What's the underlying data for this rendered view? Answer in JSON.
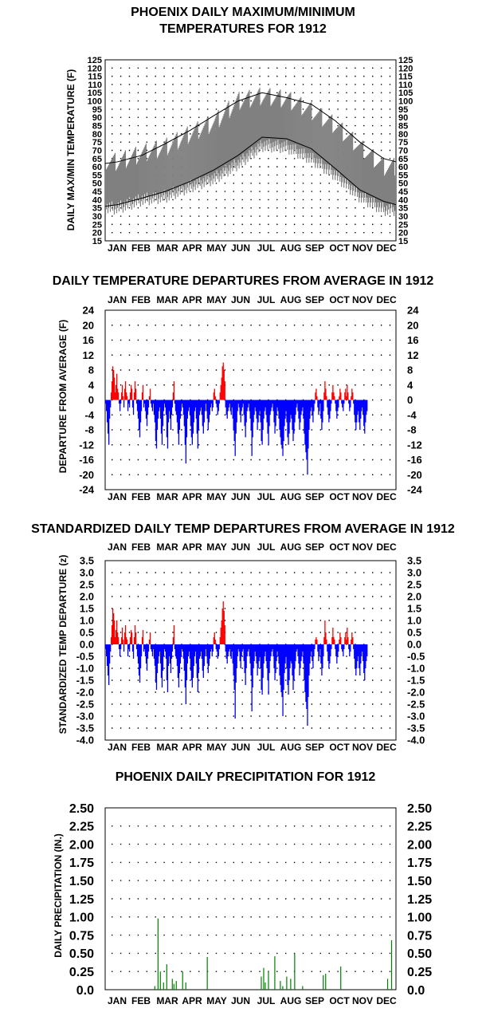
{
  "months": [
    "JAN",
    "FEB",
    "MAR",
    "APR",
    "MAY",
    "JUN",
    "JUL",
    "AUG",
    "SEP",
    "OCT",
    "NOV",
    "DEC"
  ],
  "colors": {
    "warm": "#ff0000",
    "cold": "#0000ff",
    "temp": "#808080",
    "precip": "#008000"
  },
  "chart_data": [
    {
      "type": "line",
      "title": [
        "PHOENIX DAILY MAXIMUM/MINIMUM",
        "TEMPERATURES FOR 1912"
      ],
      "ylabel": "DAILY MAX/MIN TEMPERATURE (F)",
      "ylim": [
        15,
        125
      ],
      "yticks": [
        "15",
        "20",
        "25",
        "30",
        "35",
        "40",
        "45",
        "50",
        "55",
        "60",
        "65",
        "70",
        "75",
        "80",
        "85",
        "90",
        "95",
        "100",
        "105",
        "110",
        "115",
        "120",
        "125"
      ],
      "x_unit": "month",
      "series": [
        {
          "values": [
            {
              "x": "JAN",
              "y": 63
            },
            {
              "x": "FEB",
              "y": 67
            },
            {
              "x": "MAR",
              "y": 74
            },
            {
              "x": "APR",
              "y": 82
            },
            {
              "x": "MAY",
              "y": 91
            },
            {
              "x": "JUN",
              "y": 100
            },
            {
              "x": "JUL",
              "y": 105
            },
            {
              "x": "AUG",
              "y": 102
            },
            {
              "x": "SEP",
              "y": 98
            },
            {
              "x": "OCT",
              "y": 88
            },
            {
              "x": "NOV",
              "y": 75
            },
            {
              "x": "DEC",
              "y": 65
            }
          ]
        },
        {
          "values": [
            {
              "x": "JAN",
              "y": 37
            },
            {
              "x": "FEB",
              "y": 41
            },
            {
              "x": "MAR",
              "y": 45
            },
            {
              "x": "APR",
              "y": 51
            },
            {
              "x": "MAY",
              "y": 58
            },
            {
              "x": "JUN",
              "y": 67
            },
            {
              "x": "JUL",
              "y": 78
            },
            {
              "x": "AUG",
              "y": 77
            },
            {
              "x": "SEP",
              "y": 71
            },
            {
              "x": "OCT",
              "y": 59
            },
            {
              "x": "NOV",
              "y": 46
            },
            {
              "x": "DEC",
              "y": 39
            }
          ]
        }
      ],
      "daily_range": [
        {
          "x": "JAN",
          "low": 35,
          "high": 63
        },
        {
          "x": "FEB",
          "low": 40,
          "high": 68
        },
        {
          "x": "MAR",
          "low": 42,
          "high": 72
        },
        {
          "x": "APR",
          "low": 48,
          "high": 80
        },
        {
          "x": "MAY",
          "low": 53,
          "high": 87
        },
        {
          "x": "JUN",
          "low": 62,
          "high": 100
        },
        {
          "x": "JUL",
          "low": 73,
          "high": 103
        },
        {
          "x": "AUG",
          "low": 72,
          "high": 101
        },
        {
          "x": "SEP",
          "low": 65,
          "high": 94
        },
        {
          "x": "OCT",
          "low": 55,
          "high": 85
        },
        {
          "x": "NOV",
          "low": 42,
          "high": 72
        },
        {
          "x": "DEC",
          "low": 34,
          "high": 60
        }
      ]
    },
    {
      "type": "bar",
      "title": [
        "DAILY TEMPERATURE DEPARTURES FROM AVERAGE IN 1912"
      ],
      "ylabel": "DEPARTURE FROM AVERAGE (F)",
      "ylim": [
        -24,
        24
      ],
      "yticks": [
        "-24",
        "-20",
        "-16",
        "-12",
        "-8",
        "-4",
        "0",
        "4",
        "8",
        "12",
        "16",
        "20",
        "24"
      ],
      "values": [
        -1,
        -3,
        -6,
        -9,
        -12,
        -5,
        -2,
        2,
        5,
        9,
        8,
        6,
        2,
        4,
        7,
        3,
        2,
        -1,
        -3,
        -1,
        2,
        4,
        1,
        -2,
        3,
        5,
        2,
        1,
        -3,
        -1,
        -2,
        2,
        4,
        3,
        -2,
        -4,
        2,
        5,
        3,
        -1,
        -3,
        -5,
        -8,
        -10,
        -6,
        -3,
        2,
        4,
        -2,
        -1,
        -3,
        -5,
        -7,
        -4,
        -2,
        1,
        3,
        -1,
        -2,
        -3,
        -1,
        -4,
        -6,
        -11,
        -13,
        -8,
        -5,
        -3,
        -2,
        -5,
        -9,
        -12,
        -7,
        -3,
        -1,
        -2,
        -4,
        -10,
        -13,
        -6,
        -3,
        -5,
        -8,
        -4,
        -2,
        2,
        5,
        -1,
        -3,
        -4,
        -6,
        -9,
        -12,
        -8,
        -5,
        -3,
        -1,
        -2,
        -4,
        -7,
        -12,
        -17,
        -10,
        -5,
        -3,
        -2,
        -4,
        -7,
        -10,
        -12,
        -9,
        -6,
        -3,
        -2,
        -5,
        -9,
        -13,
        -8,
        -4,
        -3,
        -2,
        -4,
        -7,
        -9,
        -6,
        -3,
        -1,
        -3,
        -5,
        -8,
        -6,
        -4,
        -2,
        -1,
        -3,
        -2,
        2,
        3,
        1,
        -1,
        -2,
        -4,
        -3,
        -1,
        2,
        4,
        6,
        9,
        10,
        8,
        5,
        -2,
        -4,
        -5,
        -3,
        -2,
        -1,
        -3,
        -4,
        -2,
        -5,
        -8,
        -11,
        -15,
        -9,
        -6,
        -3,
        -1,
        -2,
        -4,
        -6,
        -3,
        -2,
        -1,
        -4,
        -7,
        -10,
        -6,
        -3,
        -2,
        -1,
        -3,
        -5,
        -8,
        -15,
        -10,
        -6,
        -4,
        -2,
        -3,
        -5,
        -8,
        -6,
        -4,
        -3,
        -6,
        -11,
        -12,
        -8,
        -5,
        -3,
        -2,
        -4,
        -6,
        -9,
        -12,
        -7,
        -4,
        -3,
        -2,
        -1,
        -3,
        -6,
        -9,
        -7,
        -4,
        -2,
        -3,
        -5,
        -8,
        -10,
        -12,
        -13,
        -15,
        -11,
        -7,
        -5,
        -3,
        -6,
        -10,
        -12,
        -9,
        -6,
        -4,
        -5,
        -8,
        -11,
        -9,
        -6,
        -4,
        -2,
        -1,
        -3,
        -5,
        -8,
        -6,
        -4,
        -3,
        -2,
        -5,
        -9,
        -12,
        -14,
        -16,
        -20,
        -13,
        -8,
        -5,
        -3,
        -2,
        -4,
        -6,
        -3,
        -1,
        2,
        3,
        1,
        -2,
        -4,
        -3,
        -1,
        -5,
        -8,
        -6,
        -3,
        2,
        5,
        3,
        1,
        -2,
        -4,
        -6,
        -5,
        -3,
        -1,
        2,
        4,
        2,
        1,
        -1,
        -3,
        -5,
        -3,
        -2,
        1,
        3,
        2,
        -1,
        -2,
        -3,
        -1,
        2,
        3,
        1,
        4,
        2,
        -1,
        -3,
        -2,
        1,
        3,
        2,
        -1,
        -4,
        -6,
        -8,
        -6,
        -4,
        -3,
        -6,
        -8,
        -5,
        -3,
        -2,
        -4,
        -7,
        -9,
        -6,
        -4,
        -3
      ]
    },
    {
      "type": "bar",
      "title": [
        "STANDARDIZED DAILY TEMP DEPARTURES FROM AVERAGE IN 1912"
      ],
      "ylabel": "STANDARDIZED TEMP DEPARTURE (z)",
      "ylim": [
        -4,
        3.5
      ],
      "yticks": [
        "-4.0",
        "-3.5",
        "-3.0",
        "-2.5",
        "-2.0",
        "-1.5",
        "-1.0",
        "-0.5",
        "0.0",
        "0.5",
        "1.0",
        "1.5",
        "2.0",
        "2.5",
        "3.0",
        "3.5"
      ],
      "values": [
        -0.2,
        -0.5,
        -0.9,
        -1.3,
        -1.7,
        -0.8,
        -0.3,
        0.3,
        0.8,
        1.5,
        1.3,
        1.0,
        0.3,
        0.6,
        1.0,
        0.5,
        0.3,
        -0.2,
        -0.5,
        -0.2,
        0.3,
        0.7,
        0.2,
        -0.3,
        0.5,
        0.8,
        0.3,
        0.2,
        -0.5,
        -0.2,
        -0.3,
        0.3,
        0.6,
        0.5,
        -0.3,
        -0.6,
        0.3,
        0.8,
        0.5,
        -0.2,
        -0.5,
        -0.8,
        -1.3,
        -1.6,
        -1.0,
        -0.5,
        0.3,
        0.6,
        -0.3,
        -0.2,
        -0.5,
        -0.8,
        -1.1,
        -0.6,
        -0.3,
        0.2,
        0.5,
        -0.2,
        -0.3,
        -0.5,
        -0.2,
        -0.6,
        -0.9,
        -1.6,
        -1.9,
        -1.2,
        -0.8,
        -0.5,
        -0.3,
        -0.8,
        -1.4,
        -1.8,
        -1.1,
        -0.5,
        -0.2,
        -0.3,
        -0.6,
        -1.5,
        -2.0,
        -0.9,
        -0.5,
        -0.8,
        -1.2,
        -0.6,
        -0.3,
        0.3,
        0.8,
        -0.2,
        -0.5,
        -0.6,
        -0.9,
        -1.4,
        -1.8,
        -1.2,
        -0.8,
        -0.5,
        -0.2,
        -0.3,
        -0.6,
        -1.1,
        -1.8,
        -2.5,
        -1.5,
        -0.8,
        -0.5,
        -0.3,
        -0.6,
        -1.1,
        -1.5,
        -1.8,
        -1.4,
        -0.9,
        -0.5,
        -0.3,
        -0.8,
        -1.4,
        -2.0,
        -1.2,
        -0.6,
        -0.5,
        -0.3,
        -0.6,
        -1.1,
        -1.4,
        -0.9,
        -0.5,
        -0.2,
        -0.5,
        -0.8,
        -1.2,
        -0.9,
        -0.6,
        -0.3,
        -0.2,
        -0.5,
        -0.3,
        0.3,
        0.5,
        0.2,
        -0.2,
        -0.3,
        -0.6,
        -0.5,
        -0.2,
        0.3,
        0.7,
        1.0,
        1.5,
        1.8,
        1.4,
        0.8,
        -0.3,
        -0.6,
        -0.8,
        -0.5,
        -0.3,
        -0.2,
        -0.5,
        -0.6,
        -0.3,
        -0.8,
        -1.3,
        -1.9,
        -3.1,
        -1.6,
        -1.0,
        -0.5,
        -0.2,
        -0.3,
        -0.7,
        -1.0,
        -0.5,
        -0.3,
        -0.2,
        -0.7,
        -1.2,
        -1.7,
        -1.0,
        -0.5,
        -0.3,
        -0.2,
        -0.5,
        -0.8,
        -1.3,
        -2.8,
        -1.8,
        -1.0,
        -0.7,
        -0.3,
        -0.5,
        -0.8,
        -1.3,
        -1.0,
        -0.7,
        -0.5,
        -1.0,
        -1.9,
        -2.1,
        -1.4,
        -0.8,
        -0.5,
        -0.3,
        -0.7,
        -1.0,
        -1.5,
        -2.1,
        -1.2,
        -0.7,
        -0.5,
        -0.3,
        -0.2,
        -0.5,
        -1.0,
        -1.5,
        -1.2,
        -0.7,
        -0.3,
        -0.5,
        -0.8,
        -1.3,
        -1.7,
        -2.0,
        -2.2,
        -3.0,
        -1.9,
        -1.2,
        -0.8,
        -0.5,
        -1.0,
        -1.7,
        -2.1,
        -1.5,
        -1.0,
        -0.7,
        -0.8,
        -1.3,
        -1.9,
        -1.5,
        -1.0,
        -0.7,
        -0.3,
        -0.2,
        -0.5,
        -0.8,
        -1.3,
        -1.0,
        -0.7,
        -0.5,
        -0.3,
        -0.8,
        -1.5,
        -2.0,
        -2.4,
        -2.7,
        -3.4,
        -2.2,
        -1.3,
        -0.8,
        -0.5,
        -0.3,
        -0.7,
        -1.0,
        -0.5,
        -0.2,
        0.2,
        0.3,
        0.2,
        -0.3,
        -0.7,
        -0.5,
        -0.2,
        -0.8,
        -1.3,
        -1.0,
        -0.5,
        0.3,
        1.0,
        0.5,
        0.2,
        -0.3,
        -0.7,
        -1.0,
        -0.8,
        -0.5,
        -0.2,
        0.3,
        0.7,
        0.3,
        0.2,
        -0.2,
        -0.5,
        -0.8,
        -0.5,
        -0.3,
        0.2,
        0.5,
        0.3,
        -0.2,
        -0.3,
        -0.5,
        -0.2,
        0.3,
        0.5,
        0.2,
        0.7,
        0.3,
        -0.2,
        -0.5,
        -0.3,
        0.2,
        0.5,
        0.3,
        -0.2,
        -0.6,
        -1.0,
        -1.3,
        -1.0,
        -0.7,
        -0.5,
        -1.0,
        -1.3,
        -0.8,
        -0.5,
        -0.3,
        -0.7,
        -1.2,
        -1.5,
        -1.0,
        -0.7,
        -0.5
      ]
    },
    {
      "type": "bar",
      "title": [
        "PHOENIX DAILY PRECIPITATION FOR 1912"
      ],
      "ylabel": "DAILY PRECIPITATION (IN.)",
      "ylim": [
        0,
        2.5
      ],
      "yticks": [
        "0.0",
        "0.25",
        "0.50",
        "0.75",
        "1.00",
        "1.25",
        "1.50",
        "1.75",
        "2.00",
        "2.25",
        "2.50"
      ],
      "events": [
        {
          "day": 62,
          "value": 0.05
        },
        {
          "day": 66,
          "value": 0.98
        },
        {
          "day": 69,
          "value": 0.25
        },
        {
          "day": 73,
          "value": 0.1
        },
        {
          "day": 77,
          "value": 0.35
        },
        {
          "day": 84,
          "value": 0.15
        },
        {
          "day": 86,
          "value": 0.08
        },
        {
          "day": 89,
          "value": 0.12
        },
        {
          "day": 97,
          "value": 0.25
        },
        {
          "day": 101,
          "value": 0.1
        },
        {
          "day": 128,
          "value": 0.45
        },
        {
          "day": 196,
          "value": 0.18
        },
        {
          "day": 199,
          "value": 0.3
        },
        {
          "day": 201,
          "value": 0.1
        },
        {
          "day": 205,
          "value": 0.25
        },
        {
          "day": 213,
          "value": 0.46
        },
        {
          "day": 220,
          "value": 0.12
        },
        {
          "day": 223,
          "value": 0.05
        },
        {
          "day": 228,
          "value": 0.18
        },
        {
          "day": 233,
          "value": 0.15
        },
        {
          "day": 238,
          "value": 0.5
        },
        {
          "day": 248,
          "value": 0.05
        },
        {
          "day": 274,
          "value": 0.2
        },
        {
          "day": 277,
          "value": 0.22
        },
        {
          "day": 296,
          "value": 0.32
        },
        {
          "day": 355,
          "value": 0.15
        },
        {
          "day": 360,
          "value": 0.68
        }
      ]
    }
  ]
}
